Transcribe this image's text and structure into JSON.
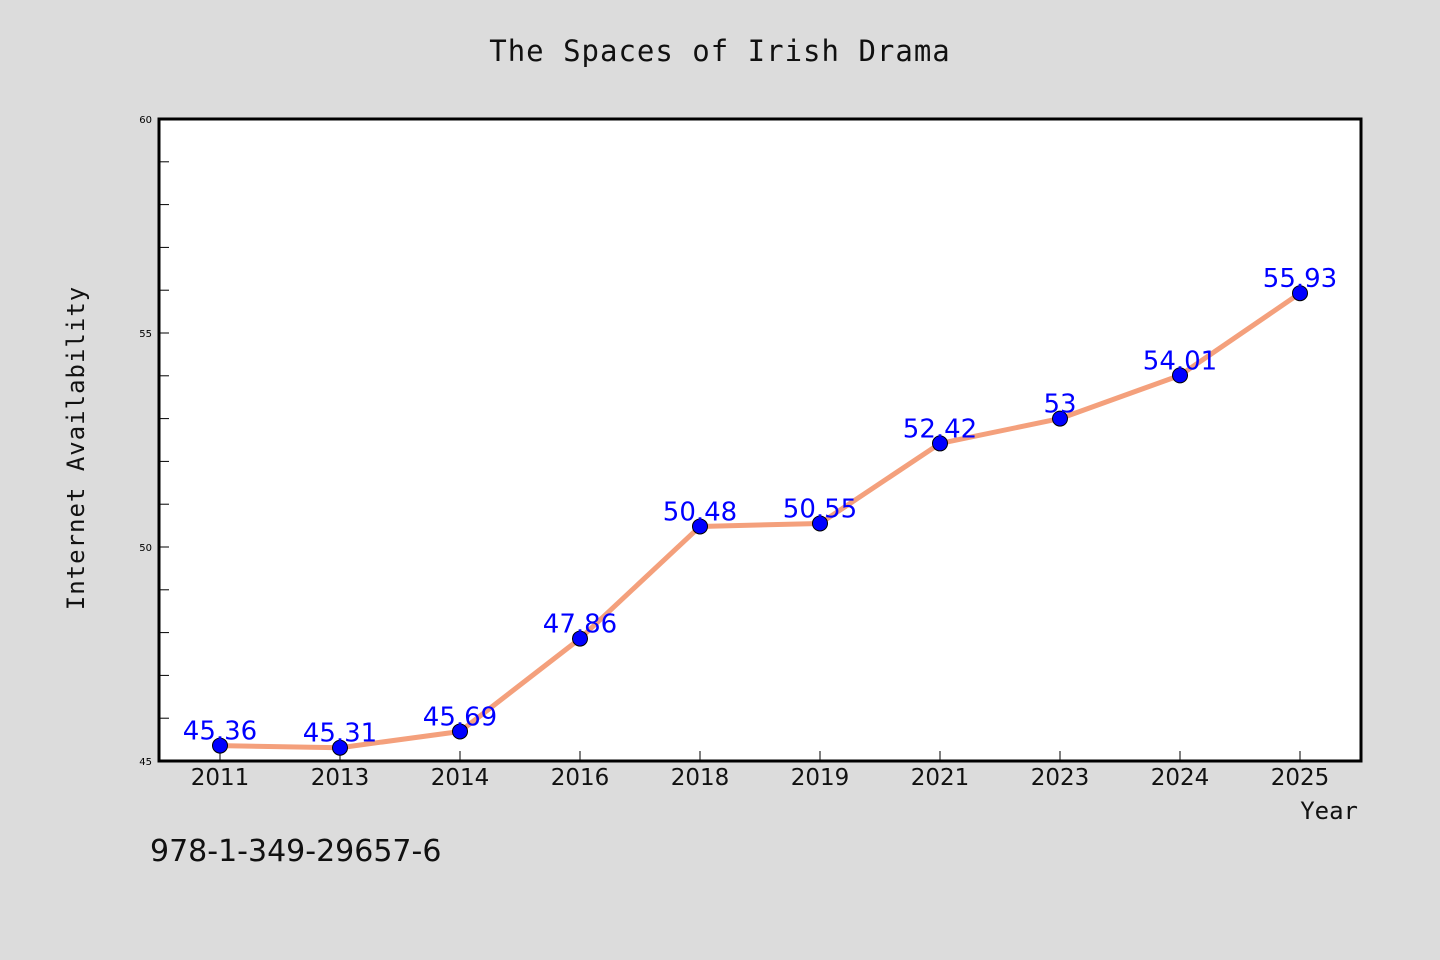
{
  "chart_data": {
    "type": "line",
    "title": "The Spaces of Irish Drama",
    "xlabel": "Year",
    "ylabel": "Internet Availability",
    "categories": [
      "2011",
      "2013",
      "2014",
      "2016",
      "2018",
      "2019",
      "2021",
      "2023",
      "2024",
      "2025"
    ],
    "series": [
      {
        "values": [
          45.36,
          45.31,
          45.69,
          47.86,
          50.48,
          50.55,
          52.42,
          53,
          54.01,
          55.93
        ],
        "data_labels": [
          "45.36",
          "45.31",
          "45.69",
          "47.86",
          "50.48",
          "50.55",
          "52.42",
          "53",
          "54.01",
          "55.93"
        ]
      }
    ],
    "ylim": [
      45,
      60
    ],
    "y_ticks": [
      "45",
      "50",
      "55",
      "60"
    ],
    "line_color": "#f4a07c",
    "marker_color": "#0000ff",
    "label_color": "#0000ff",
    "grid": false
  },
  "footer": {
    "code": "978-1-349-29657-6"
  }
}
